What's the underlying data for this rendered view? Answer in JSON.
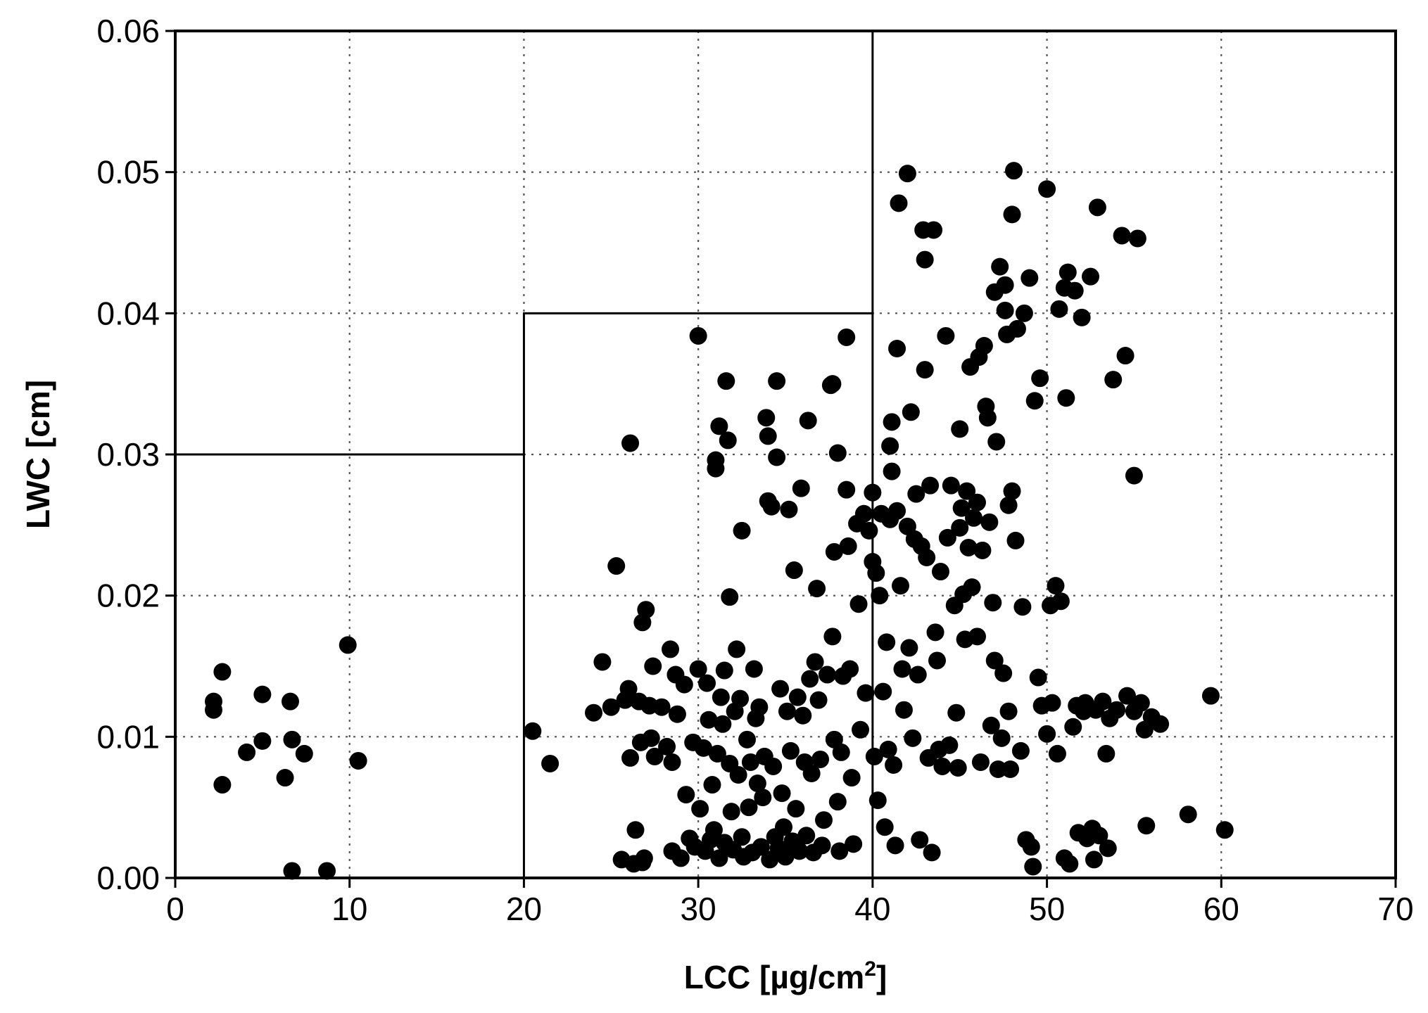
{
  "chart_data": {
    "type": "scatter",
    "title": "",
    "xlabel": "LCC [µg/cm",
    "xlabel_sup": "2",
    "xlabel_end": "]",
    "ylabel": "LWC [cm]",
    "xlim": [
      0,
      70
    ],
    "ylim": [
      0,
      0.06
    ],
    "x_ticks": [
      0,
      10,
      20,
      30,
      40,
      50,
      60,
      70
    ],
    "x_tick_labels": [
      "0",
      "10",
      "20",
      "30",
      "40",
      "50",
      "60",
      "70"
    ],
    "y_ticks": [
      0,
      0.01,
      0.02,
      0.03,
      0.04,
      0.05,
      0.06
    ],
    "y_tick_labels": [
      "0.00",
      "0.01",
      "0.02",
      "0.03",
      "0.04",
      "0.05",
      "0.06"
    ],
    "grid": true,
    "marker_color": "#000000",
    "region_boundaries": [
      {
        "name": "low-lcc-region",
        "points": [
          [
            0,
            0.03
          ],
          [
            20,
            0.03
          ],
          [
            20,
            0
          ]
        ]
      },
      {
        "name": "mid-lcc-region",
        "points": [
          [
            20,
            0.03
          ],
          [
            20,
            0.04
          ],
          [
            40,
            0.04
          ]
        ]
      },
      {
        "name": "high-lcc-boundary",
        "points": [
          [
            40,
            0
          ],
          [
            40,
            0.06
          ]
        ]
      }
    ],
    "points": [
      [
        2.2,
        0.0125
      ],
      [
        2.2,
        0.0119
      ],
      [
        2.7,
        0.0146
      ],
      [
        2.7,
        0.0066
      ],
      [
        4.1,
        0.0089
      ],
      [
        5.0,
        0.013
      ],
      [
        5.0,
        0.0097
      ],
      [
        6.3,
        0.0071
      ],
      [
        6.6,
        0.0125
      ],
      [
        6.7,
        0.0098
      ],
      [
        6.7,
        0.0005
      ],
      [
        7.4,
        0.0088
      ],
      [
        8.7,
        0.0005
      ],
      [
        9.9,
        0.0165
      ],
      [
        10.5,
        0.0083
      ],
      [
        20.5,
        0.0104
      ],
      [
        21.5,
        0.0081
      ],
      [
        24.0,
        0.0117
      ],
      [
        24.5,
        0.0153
      ],
      [
        25.0,
        0.0121
      ],
      [
        25.3,
        0.0221
      ],
      [
        25.6,
        0.0013
      ],
      [
        25.8,
        0.0126
      ],
      [
        26.0,
        0.0134
      ],
      [
        26.1,
        0.0308
      ],
      [
        26.1,
        0.0085
      ],
      [
        26.3,
        0.001
      ],
      [
        26.4,
        0.0034
      ],
      [
        26.6,
        0.0125
      ],
      [
        26.7,
        0.0096
      ],
      [
        26.8,
        0.0181
      ],
      [
        26.8,
        0.0011
      ],
      [
        26.9,
        0.0014
      ],
      [
        27.0,
        0.019
      ],
      [
        27.2,
        0.0122
      ],
      [
        27.3,
        0.0099
      ],
      [
        27.4,
        0.015
      ],
      [
        27.5,
        0.0086
      ],
      [
        27.9,
        0.0121
      ],
      [
        28.2,
        0.0093
      ],
      [
        28.4,
        0.0162
      ],
      [
        28.5,
        0.0019
      ],
      [
        28.5,
        0.0082
      ],
      [
        28.7,
        0.0144
      ],
      [
        28.8,
        0.0116
      ],
      [
        29.0,
        0.0014
      ],
      [
        29.2,
        0.0137
      ],
      [
        29.3,
        0.0059
      ],
      [
        29.5,
        0.0028
      ],
      [
        29.7,
        0.0096
      ],
      [
        29.8,
        0.0022
      ],
      [
        30.0,
        0.0384
      ],
      [
        30.0,
        0.0148
      ],
      [
        30.1,
        0.0049
      ],
      [
        30.3,
        0.0092
      ],
      [
        30.4,
        0.0019
      ],
      [
        30.5,
        0.0138
      ],
      [
        30.6,
        0.0112
      ],
      [
        30.7,
        0.0027
      ],
      [
        30.8,
        0.0066
      ],
      [
        30.9,
        0.0034
      ],
      [
        31.0,
        0.0296
      ],
      [
        31.0,
        0.029
      ],
      [
        31.1,
        0.0088
      ],
      [
        31.2,
        0.032
      ],
      [
        31.2,
        0.0014
      ],
      [
        31.3,
        0.0128
      ],
      [
        31.4,
        0.0109
      ],
      [
        31.5,
        0.0147
      ],
      [
        31.5,
        0.0025
      ],
      [
        31.6,
        0.0352
      ],
      [
        31.7,
        0.031
      ],
      [
        31.8,
        0.0199
      ],
      [
        31.8,
        0.0081
      ],
      [
        31.9,
        0.0047
      ],
      [
        32.0,
        0.002
      ],
      [
        32.1,
        0.0118
      ],
      [
        32.2,
        0.0162
      ],
      [
        32.3,
        0.0073
      ],
      [
        32.4,
        0.0127
      ],
      [
        32.5,
        0.0246
      ],
      [
        32.5,
        0.0029
      ],
      [
        32.6,
        0.0015
      ],
      [
        32.8,
        0.0098
      ],
      [
        32.9,
        0.005
      ],
      [
        33.0,
        0.0082
      ],
      [
        33.1,
        0.0018
      ],
      [
        33.2,
        0.0148
      ],
      [
        33.3,
        0.0113
      ],
      [
        33.4,
        0.0067
      ],
      [
        33.5,
        0.0121
      ],
      [
        33.6,
        0.0022
      ],
      [
        33.7,
        0.0057
      ],
      [
        33.8,
        0.0086
      ],
      [
        33.9,
        0.0326
      ],
      [
        34.0,
        0.0313
      ],
      [
        34.0,
        0.0267
      ],
      [
        34.1,
        0.0013
      ],
      [
        34.2,
        0.0263
      ],
      [
        34.3,
        0.0079
      ],
      [
        34.4,
        0.0029
      ],
      [
        34.5,
        0.0352
      ],
      [
        34.5,
        0.0298
      ],
      [
        34.6,
        0.0021
      ],
      [
        34.7,
        0.0134
      ],
      [
        34.8,
        0.006
      ],
      [
        34.9,
        0.0036
      ],
      [
        35.0,
        0.0015
      ],
      [
        35.1,
        0.0118
      ],
      [
        35.2,
        0.0261
      ],
      [
        35.3,
        0.009
      ],
      [
        35.4,
        0.0026
      ],
      [
        35.5,
        0.0218
      ],
      [
        35.6,
        0.0049
      ],
      [
        35.7,
        0.0128
      ],
      [
        35.8,
        0.0019
      ],
      [
        35.9,
        0.0276
      ],
      [
        36.0,
        0.0115
      ],
      [
        36.1,
        0.0082
      ],
      [
        36.2,
        0.003
      ],
      [
        36.3,
        0.0324
      ],
      [
        36.4,
        0.0141
      ],
      [
        36.5,
        0.0074
      ],
      [
        36.6,
        0.0018
      ],
      [
        36.7,
        0.0153
      ],
      [
        36.8,
        0.0205
      ],
      [
        36.9,
        0.0126
      ],
      [
        37.0,
        0.0084
      ],
      [
        37.1,
        0.0023
      ],
      [
        37.2,
        0.0041
      ],
      [
        37.4,
        0.0144
      ],
      [
        37.6,
        0.0349
      ],
      [
        37.7,
        0.035
      ],
      [
        37.7,
        0.0171
      ],
      [
        37.8,
        0.0098
      ],
      [
        37.8,
        0.0231
      ],
      [
        38.0,
        0.0301
      ],
      [
        38.0,
        0.0054
      ],
      [
        38.1,
        0.0019
      ],
      [
        38.2,
        0.0089
      ],
      [
        38.3,
        0.0143
      ],
      [
        38.5,
        0.0275
      ],
      [
        38.5,
        0.0383
      ],
      [
        38.6,
        0.0235
      ],
      [
        38.7,
        0.0148
      ],
      [
        38.8,
        0.0071
      ],
      [
        38.9,
        0.0024
      ],
      [
        39.1,
        0.0251
      ],
      [
        39.2,
        0.0194
      ],
      [
        39.3,
        0.0105
      ],
      [
        39.5,
        0.0258
      ],
      [
        39.6,
        0.0131
      ],
      [
        39.8,
        0.0246
      ],
      [
        40.0,
        0.0224
      ],
      [
        40.0,
        0.0273
      ],
      [
        40.1,
        0.0086
      ],
      [
        40.2,
        0.0216
      ],
      [
        40.3,
        0.0055
      ],
      [
        40.4,
        0.02
      ],
      [
        40.5,
        0.0258
      ],
      [
        40.6,
        0.0132
      ],
      [
        40.7,
        0.0036
      ],
      [
        40.8,
        0.0167
      ],
      [
        40.9,
        0.0091
      ],
      [
        41.0,
        0.0254
      ],
      [
        41.0,
        0.0306
      ],
      [
        41.1,
        0.0288
      ],
      [
        41.1,
        0.0323
      ],
      [
        41.2,
        0.008
      ],
      [
        41.3,
        0.0023
      ],
      [
        41.4,
        0.0375
      ],
      [
        41.4,
        0.026
      ],
      [
        41.5,
        0.0478
      ],
      [
        41.6,
        0.0207
      ],
      [
        41.7,
        0.0148
      ],
      [
        41.8,
        0.0119
      ],
      [
        42.0,
        0.0499
      ],
      [
        42.0,
        0.0249
      ],
      [
        42.1,
        0.0163
      ],
      [
        42.2,
        0.033
      ],
      [
        42.3,
        0.0099
      ],
      [
        42.4,
        0.024
      ],
      [
        42.5,
        0.0272
      ],
      [
        42.6,
        0.0144
      ],
      [
        42.7,
        0.0027
      ],
      [
        42.8,
        0.0235
      ],
      [
        42.9,
        0.0459
      ],
      [
        43.0,
        0.036
      ],
      [
        43.0,
        0.0438
      ],
      [
        43.1,
        0.0227
      ],
      [
        43.2,
        0.0085
      ],
      [
        43.3,
        0.0278
      ],
      [
        43.4,
        0.0018
      ],
      [
        43.5,
        0.0459
      ],
      [
        43.6,
        0.0174
      ],
      [
        43.7,
        0.0154
      ],
      [
        43.8,
        0.0091
      ],
      [
        43.9,
        0.0217
      ],
      [
        44.0,
        0.0079
      ],
      [
        44.2,
        0.0384
      ],
      [
        44.3,
        0.0241
      ],
      [
        44.4,
        0.0094
      ],
      [
        44.5,
        0.0278
      ],
      [
        44.7,
        0.0193
      ],
      [
        44.8,
        0.0117
      ],
      [
        44.9,
        0.0078
      ],
      [
        45.0,
        0.0318
      ],
      [
        45.0,
        0.0248
      ],
      [
        45.1,
        0.0262
      ],
      [
        45.2,
        0.0201
      ],
      [
        45.3,
        0.0169
      ],
      [
        45.4,
        0.0274
      ],
      [
        45.5,
        0.0234
      ],
      [
        45.6,
        0.0362
      ],
      [
        45.7,
        0.0206
      ],
      [
        45.8,
        0.0255
      ],
      [
        46.0,
        0.0266
      ],
      [
        46.0,
        0.0171
      ],
      [
        46.1,
        0.0369
      ],
      [
        46.2,
        0.0082
      ],
      [
        46.3,
        0.0232
      ],
      [
        46.4,
        0.0377
      ],
      [
        46.5,
        0.0334
      ],
      [
        46.6,
        0.0326
      ],
      [
        46.7,
        0.0252
      ],
      [
        46.8,
        0.0108
      ],
      [
        46.9,
        0.0195
      ],
      [
        47.0,
        0.0154
      ],
      [
        47.0,
        0.0415
      ],
      [
        47.1,
        0.0309
      ],
      [
        47.2,
        0.0077
      ],
      [
        47.3,
        0.0433
      ],
      [
        47.4,
        0.0099
      ],
      [
        47.5,
        0.0145
      ],
      [
        47.6,
        0.0402
      ],
      [
        47.6,
        0.042
      ],
      [
        47.7,
        0.0385
      ],
      [
        47.8,
        0.0264
      ],
      [
        47.8,
        0.0118
      ],
      [
        47.9,
        0.0077
      ],
      [
        48.0,
        0.047
      ],
      [
        48.0,
        0.0274
      ],
      [
        48.1,
        0.0501
      ],
      [
        48.2,
        0.0239
      ],
      [
        48.3,
        0.0389
      ],
      [
        48.5,
        0.009
      ],
      [
        48.6,
        0.0192
      ],
      [
        48.7,
        0.04
      ],
      [
        48.8,
        0.0027
      ],
      [
        49.0,
        0.0425
      ],
      [
        49.1,
        0.0022
      ],
      [
        49.2,
        0.0008
      ],
      [
        49.3,
        0.0338
      ],
      [
        49.5,
        0.0142
      ],
      [
        49.6,
        0.0354
      ],
      [
        49.7,
        0.0122
      ],
      [
        50.0,
        0.0488
      ],
      [
        50.0,
        0.0102
      ],
      [
        50.2,
        0.0193
      ],
      [
        50.3,
        0.0124
      ],
      [
        50.5,
        0.0207
      ],
      [
        50.6,
        0.0088
      ],
      [
        50.7,
        0.0403
      ],
      [
        50.8,
        0.0196
      ],
      [
        51.0,
        0.0418
      ],
      [
        51.0,
        0.0014
      ],
      [
        51.1,
        0.034
      ],
      [
        51.2,
        0.0429
      ],
      [
        51.3,
        0.001
      ],
      [
        51.5,
        0.0107
      ],
      [
        51.6,
        0.0416
      ],
      [
        51.7,
        0.0122
      ],
      [
        51.8,
        0.0032
      ],
      [
        52.0,
        0.0397
      ],
      [
        52.1,
        0.0118
      ],
      [
        52.2,
        0.0124
      ],
      [
        52.3,
        0.0028
      ],
      [
        52.5,
        0.0426
      ],
      [
        52.6,
        0.0035
      ],
      [
        52.7,
        0.0013
      ],
      [
        52.8,
        0.0119
      ],
      [
        52.9,
        0.0475
      ],
      [
        53.0,
        0.003
      ],
      [
        53.2,
        0.0125
      ],
      [
        53.4,
        0.0088
      ],
      [
        53.5,
        0.0021
      ],
      [
        53.6,
        0.0113
      ],
      [
        53.8,
        0.0353
      ],
      [
        54.0,
        0.0119
      ],
      [
        54.3,
        0.0455
      ],
      [
        54.5,
        0.037
      ],
      [
        54.6,
        0.0129
      ],
      [
        55.0,
        0.0285
      ],
      [
        55.0,
        0.0118
      ],
      [
        55.2,
        0.0453
      ],
      [
        55.4,
        0.0124
      ],
      [
        55.6,
        0.0105
      ],
      [
        55.7,
        0.0037
      ],
      [
        56.0,
        0.0114
      ],
      [
        56.5,
        0.0109
      ],
      [
        58.1,
        0.0045
      ],
      [
        59.4,
        0.0129
      ],
      [
        60.2,
        0.0034
      ]
    ]
  }
}
